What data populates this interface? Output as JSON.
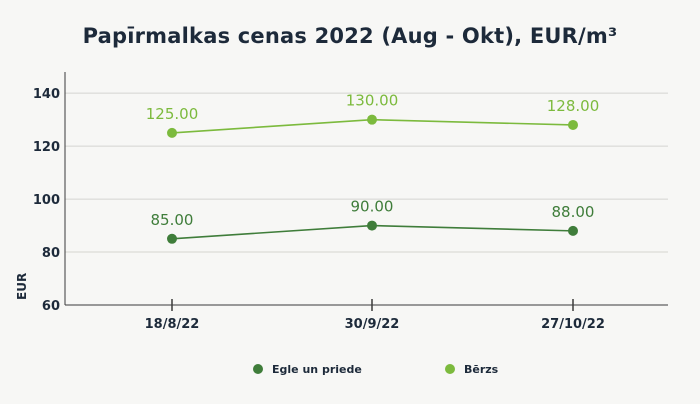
{
  "chart_data": {
    "type": "line",
    "title": "Papīrmalkas cenas 2022 (Aug - Okt), EUR/m³",
    "xlabel": "",
    "ylabel": "EUR",
    "categories": [
      "18/8/22",
      "30/9/22",
      "27/10/22"
    ],
    "ylim": [
      60,
      148
    ],
    "yticks": [
      60,
      80,
      100,
      120,
      140
    ],
    "grid": true,
    "legend_position": "bottom",
    "series": [
      {
        "name": "Egle un priede",
        "values": [
          85.0,
          90.0,
          88.0
        ],
        "labels": [
          "85.00",
          "90.00",
          "88.00"
        ],
        "color": "#3f7d3a"
      },
      {
        "name": "Bērzs",
        "values": [
          125.0,
          130.0,
          128.0
        ],
        "labels": [
          "125.00",
          "130.00",
          "128.00"
        ],
        "color": "#7cba3d"
      }
    ]
  }
}
